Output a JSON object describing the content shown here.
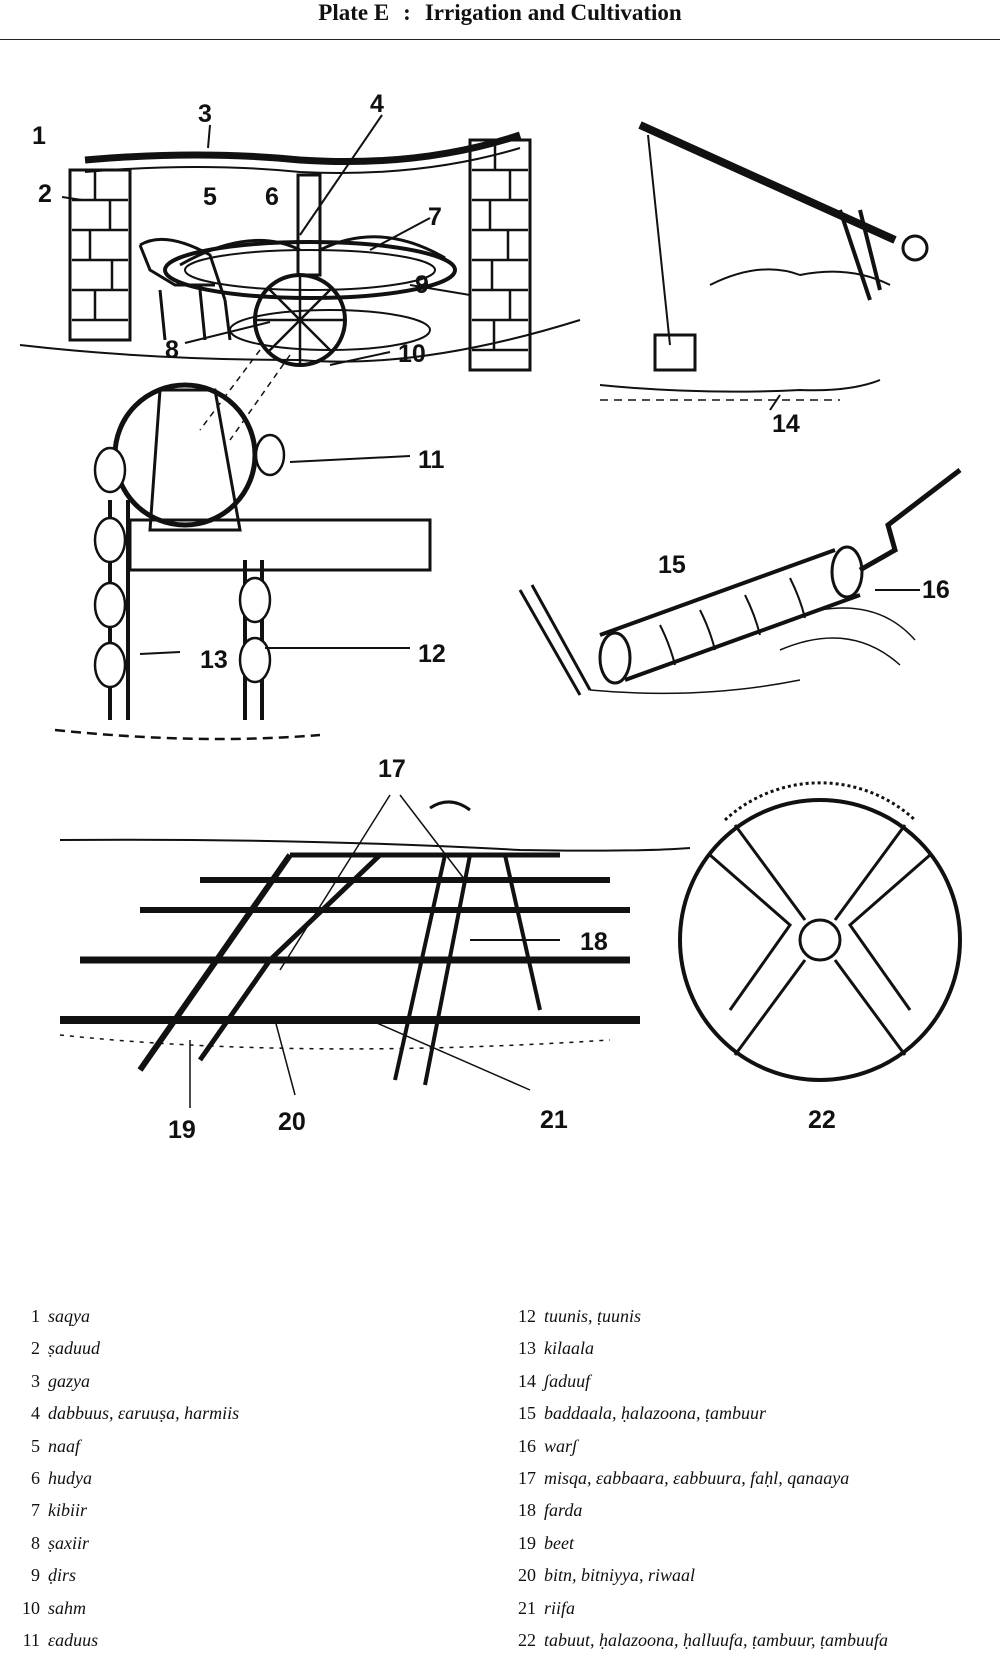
{
  "plate": {
    "label": "Plate E",
    "separator": ":",
    "title": "Irrigation and Cultivation"
  },
  "callouts": [
    "1",
    "2",
    "3",
    "4",
    "5",
    "6",
    "7",
    "8",
    "9",
    "10",
    "11",
    "12",
    "13",
    "14",
    "15",
    "16",
    "17",
    "18",
    "19",
    "20",
    "21",
    "22"
  ],
  "legend_left": [
    {
      "num": "1",
      "term": "saqya"
    },
    {
      "num": "2",
      "term": "ṣaduud"
    },
    {
      "num": "3",
      "term": "gazya"
    },
    {
      "num": "4",
      "term": "dabbuus, ɛaruuṣa, harmiis"
    },
    {
      "num": "5",
      "term": "naaf"
    },
    {
      "num": "6",
      "term": "hudya"
    },
    {
      "num": "7",
      "term": "kibiir"
    },
    {
      "num": "8",
      "term": "ṣaxiir"
    },
    {
      "num": "9",
      "term": "ḍirs"
    },
    {
      "num": "10",
      "term": "sahm"
    },
    {
      "num": "11",
      "term": "ɛaduus"
    }
  ],
  "legend_right": [
    {
      "num": "12",
      "term": "tuunis, ṭuunis"
    },
    {
      "num": "13",
      "term": "kilaala"
    },
    {
      "num": "14",
      "term": "ʃaduuf"
    },
    {
      "num": "15",
      "term": "baddaala, ḥalazoona, ṭambuur"
    },
    {
      "num": "16",
      "term": "warʃ"
    },
    {
      "num": "17",
      "term": "misqa, ɛabbaara, ɛabbuura, faḥl, qanaaya"
    },
    {
      "num": "18",
      "term": "farda"
    },
    {
      "num": "19",
      "term": "beet"
    },
    {
      "num": "20",
      "term": "bitn, bitniyya, riwaal"
    },
    {
      "num": "21",
      "term": "riifa"
    },
    {
      "num": "22",
      "term": "tabuut, ḥalazoona, ḥalluufa, ṭambuur, ṭambuufa"
    }
  ]
}
